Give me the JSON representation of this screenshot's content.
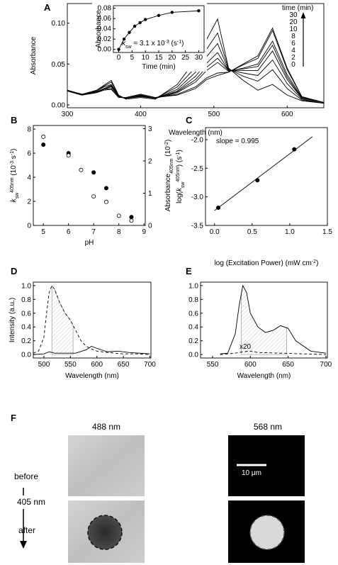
{
  "chart_data": [
    {
      "type": "line",
      "label": "A",
      "xlabel": "Wavelength (nm)",
      "ylabel": "Absorbance",
      "color": "#000000",
      "x": [
        300,
        320,
        340,
        350,
        360,
        370,
        380,
        400,
        420,
        450,
        475,
        490,
        505,
        520,
        540,
        560,
        580,
        600,
        620,
        650
      ],
      "xlim": [
        300,
        650
      ],
      "xticks": [
        300,
        400,
        500,
        600
      ],
      "ylim": [
        -0.0035,
        0.124
      ],
      "yticks": [
        {
          "value": 0,
          "label": "0.00"
        },
        {
          "value": 0.05,
          "label": "0.05"
        },
        {
          "value": 0.1,
          "label": "0.10"
        }
      ],
      "legend_title": "time (min)",
      "series": [
        {
          "name": "30",
          "values": [
            0.017,
            0.012,
            0.015,
            0.018,
            0.019,
            0.009,
            0.009,
            0.013,
            0.009,
            0.012,
            0.02,
            0.031,
            0.036,
            0.04,
            0.05,
            0.06,
            0.094,
            0.045,
            0.01,
            0.003
          ]
        },
        {
          "name": "20",
          "values": [
            0.017,
            0.012,
            0.015,
            0.019,
            0.02,
            0.009,
            0.009,
            0.013,
            0.009,
            0.013,
            0.022,
            0.033,
            0.039,
            0.04,
            0.049,
            0.057,
            0.091,
            0.043,
            0.01,
            0.003
          ]
        },
        {
          "name": "10",
          "values": [
            0.017,
            0.012,
            0.016,
            0.019,
            0.022,
            0.01,
            0.008,
            0.012,
            0.008,
            0.015,
            0.028,
            0.042,
            0.052,
            0.041,
            0.045,
            0.05,
            0.078,
            0.037,
            0.009,
            0.003
          ]
        },
        {
          "name": "8",
          "values": [
            0.017,
            0.013,
            0.016,
            0.02,
            0.023,
            0.01,
            0.008,
            0.012,
            0.008,
            0.016,
            0.031,
            0.046,
            0.057,
            0.042,
            0.044,
            0.047,
            0.073,
            0.034,
            0.008,
            0.003
          ]
        },
        {
          "name": "6",
          "values": [
            0.017,
            0.013,
            0.016,
            0.02,
            0.024,
            0.01,
            0.008,
            0.011,
            0.008,
            0.017,
            0.035,
            0.051,
            0.064,
            0.042,
            0.042,
            0.042,
            0.066,
            0.031,
            0.008,
            0.003
          ]
        },
        {
          "name": "4",
          "values": [
            0.017,
            0.013,
            0.017,
            0.022,
            0.025,
            0.011,
            0.008,
            0.011,
            0.008,
            0.019,
            0.04,
            0.059,
            0.075,
            0.043,
            0.039,
            0.036,
            0.055,
            0.026,
            0.007,
            0.002
          ]
        },
        {
          "name": "2",
          "values": [
            0.018,
            0.013,
            0.017,
            0.023,
            0.028,
            0.011,
            0.008,
            0.01,
            0.008,
            0.022,
            0.046,
            0.068,
            0.088,
            0.044,
            0.035,
            0.029,
            0.043,
            0.02,
            0.006,
            0.002
          ]
        },
        {
          "name": "0",
          "values": [
            0.018,
            0.013,
            0.018,
            0.024,
            0.03,
            0.012,
            0.007,
            0.009,
            0.007,
            0.025,
            0.055,
            0.08,
            0.105,
            0.045,
            0.03,
            0.018,
            0.025,
            0.012,
            0.005,
            0.002
          ]
        }
      ]
    },
    {
      "type": "scatter",
      "xlabel": "Time (min)",
      "ylabel": "Absorbance",
      "color": "#000000",
      "xlim": [
        -2,
        32
      ],
      "xticks": [
        0,
        5,
        10,
        15,
        20,
        25,
        30
      ],
      "ylim": [
        -0.006,
        0.085
      ],
      "yticks": [
        {
          "value": 0,
          "label": "0.00"
        },
        {
          "value": 0.02,
          "label": "0.02"
        },
        {
          "value": 0.04,
          "label": "0.04"
        },
        {
          "value": 0.06,
          "label": "0.06"
        },
        {
          "value": 0.08,
          "label": "0.08"
        }
      ],
      "annotation": [
        {
          "text": "k",
          "italic": true
        },
        {
          "text": "sw",
          "shift": "sub"
        },
        {
          "text": " = 3.1 x 10"
        },
        {
          "text": "-3",
          "shift": "sup"
        },
        {
          "text": " (s"
        },
        {
          "text": "-1",
          "shift": "sup"
        },
        {
          "text": ")"
        }
      ],
      "series": [
        {
          "x": [
            0,
            2,
            4,
            6,
            8,
            10,
            15,
            20,
            30
          ],
          "values": [
            0,
            0.02,
            0.033,
            0.045,
            0.052,
            0.058,
            0.066,
            0.072,
            0.075
          ],
          "marker": "filled",
          "line": true
        }
      ]
    },
    {
      "type": "scatter",
      "label": "B",
      "xlabel": "pH",
      "color": "#000000",
      "ylabel": [
        {
          "text": "k",
          "italic": true
        },
        {
          "text": "sw",
          "shift": "sub"
        },
        {
          "text": "405nm",
          "shift": "sup"
        },
        {
          "text": " (10"
        },
        {
          "text": "-3",
          "shift": "sup"
        },
        {
          "text": " s"
        },
        {
          "text": "-1",
          "shift": "sup"
        },
        {
          "text": ")"
        }
      ],
      "y2label": [
        {
          "text": "Absorbance"
        },
        {
          "text": "405nm",
          "shift": "sub"
        },
        {
          "text": " (10"
        },
        {
          "text": "-2",
          "shift": "sup"
        },
        {
          "text": ")"
        }
      ],
      "xlim": [
        4.6,
        9.05
      ],
      "xticks": [
        5,
        6,
        7,
        8,
        9
      ],
      "ylim": [
        0,
        8.3
      ],
      "yticks": [
        0,
        2,
        4,
        6,
        8
      ],
      "y2lim": [
        0,
        3.1
      ],
      "y2ticks": [
        0,
        1,
        2,
        3
      ],
      "series": [
        {
          "x": [
            5,
            6,
            7,
            7.5,
            8.5
          ],
          "values": [
            6.7,
            6.0,
            4.4,
            3.1,
            0.7
          ],
          "marker": "filled"
        },
        {
          "x": [
            5,
            6,
            6.5,
            7,
            7.5,
            8,
            8.5
          ],
          "values": [
            2.75,
            2.17,
            1.72,
            0.9,
            0.73,
            0.3,
            0.15
          ],
          "marker": "open",
          "axis": "y2"
        }
      ]
    },
    {
      "type": "scatter",
      "label": "C",
      "color": "#000000",
      "xlabel": [
        {
          "text": "log (Excitation Power) (mW cm"
        },
        {
          "text": "-2",
          "shift": "sup"
        },
        {
          "text": ")"
        }
      ],
      "ylabel": [
        {
          "text": "log("
        },
        {
          "text": "k",
          "italic": true
        },
        {
          "text": "sw",
          "shift": "sub"
        },
        {
          "text": "405nm",
          "shift": "sup"
        },
        {
          "text": ") (s"
        },
        {
          "text": "-1",
          "shift": "sup"
        },
        {
          "text": ")"
        }
      ],
      "xlim": [
        -0.12,
        1.5
      ],
      "xticks": [
        {
          "value": 0,
          "label": "0.0"
        },
        0.5,
        {
          "value": 1,
          "label": "1.0"
        },
        1.5
      ],
      "ylim": [
        -3.5,
        -1.79
      ],
      "yticks": [
        -3.5,
        {
          "value": -3,
          "label": "-3.0"
        },
        -2.5,
        {
          "value": -2,
          "label": "-2.0"
        }
      ],
      "annotation": "slope = 0.995",
      "series": [
        {
          "x": [
            0.05,
            0.57,
            1.06
          ],
          "values": [
            -3.19,
            -2.71,
            -2.17
          ],
          "marker": "filled"
        },
        {
          "x": [
            0,
            1.3
          ],
          "values": [
            -3.24,
            -1.95
          ],
          "line": true
        }
      ]
    },
    {
      "type": "line",
      "label": "D",
      "xlabel": "Wavelength (nm)",
      "ylabel": "Intensity (a.u.)",
      "color": "#000000",
      "xlim": [
        480,
        702
      ],
      "xticks": [
        500,
        550,
        600,
        650,
        700
      ],
      "ylim": [
        -0.05,
        1.05
      ],
      "yticks": [
        {
          "value": 0,
          "label": "0.0"
        },
        0.2,
        0.4,
        0.6,
        0.8,
        {
          "value": 1,
          "label": "1.0"
        }
      ],
      "series": [
        {
          "x": [
            480,
            490,
            500,
            505,
            510,
            515,
            520,
            530,
            540,
            550,
            560,
            570,
            580,
            590,
            600,
            620,
            650,
            680,
            700
          ],
          "values": [
            0.02,
            0.05,
            0.25,
            0.6,
            0.9,
            1.0,
            0.95,
            0.75,
            0.6,
            0.5,
            0.35,
            0.2,
            0.12,
            0.08,
            0.05,
            0.03,
            0.01,
            0.01,
            0
          ],
          "dash": true,
          "shaded_range": [
            515,
            555
          ]
        },
        {
          "x": [
            480,
            500,
            510,
            520,
            560,
            580,
            590,
            600,
            620,
            640,
            660,
            700
          ],
          "values": [
            0,
            0.01,
            0.04,
            0.02,
            0.02,
            0.07,
            0.12,
            0.09,
            0.04,
            0.05,
            0.03,
            0.01
          ]
        }
      ]
    },
    {
      "type": "line",
      "label": "E",
      "xlabel": "Wavelength (nm)",
      "color": "#000000",
      "xlim": [
        534,
        702
      ],
      "xticks": [
        550,
        600,
        650,
        700
      ],
      "ylim": [
        -0.05,
        1.05
      ],
      "yticks": [
        {
          "value": 0,
          "label": "0.0"
        },
        0.2,
        0.4,
        0.6,
        0.8,
        {
          "value": 1,
          "label": "1.0"
        }
      ],
      "annotation": "x20",
      "series": [
        {
          "x": [
            560,
            570,
            580,
            585,
            590,
            595,
            600,
            610,
            620,
            630,
            640,
            650,
            660,
            680,
            700
          ],
          "values": [
            0.01,
            0.02,
            0.3,
            0.7,
            1.0,
            0.9,
            0.6,
            0.4,
            0.32,
            0.35,
            0.42,
            0.38,
            0.2,
            0.05,
            0.02
          ],
          "shaded_range": [
            588,
            648
          ]
        },
        {
          "x": [
            560,
            580,
            590,
            600,
            610,
            640,
            700
          ],
          "values": [
            0,
            0.02,
            0.04,
            0.05,
            0.03,
            0.02,
            0
          ],
          "dash": true
        }
      ]
    }
  ],
  "panel_f": {
    "label": "F",
    "columns": [
      "488 nm",
      "568 nm"
    ],
    "rows": [
      "before",
      "after"
    ],
    "arrow_label": "405 nm",
    "scale_bar": "10 μm"
  }
}
